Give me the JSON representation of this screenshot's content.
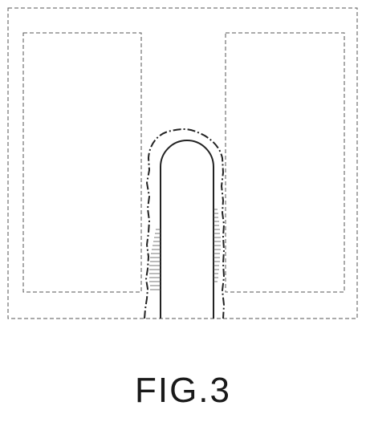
{
  "figure": {
    "caption": "FIG.3"
  },
  "colors": {
    "line": "#444444",
    "hatch": "#555555",
    "background": "#ffffff"
  }
}
